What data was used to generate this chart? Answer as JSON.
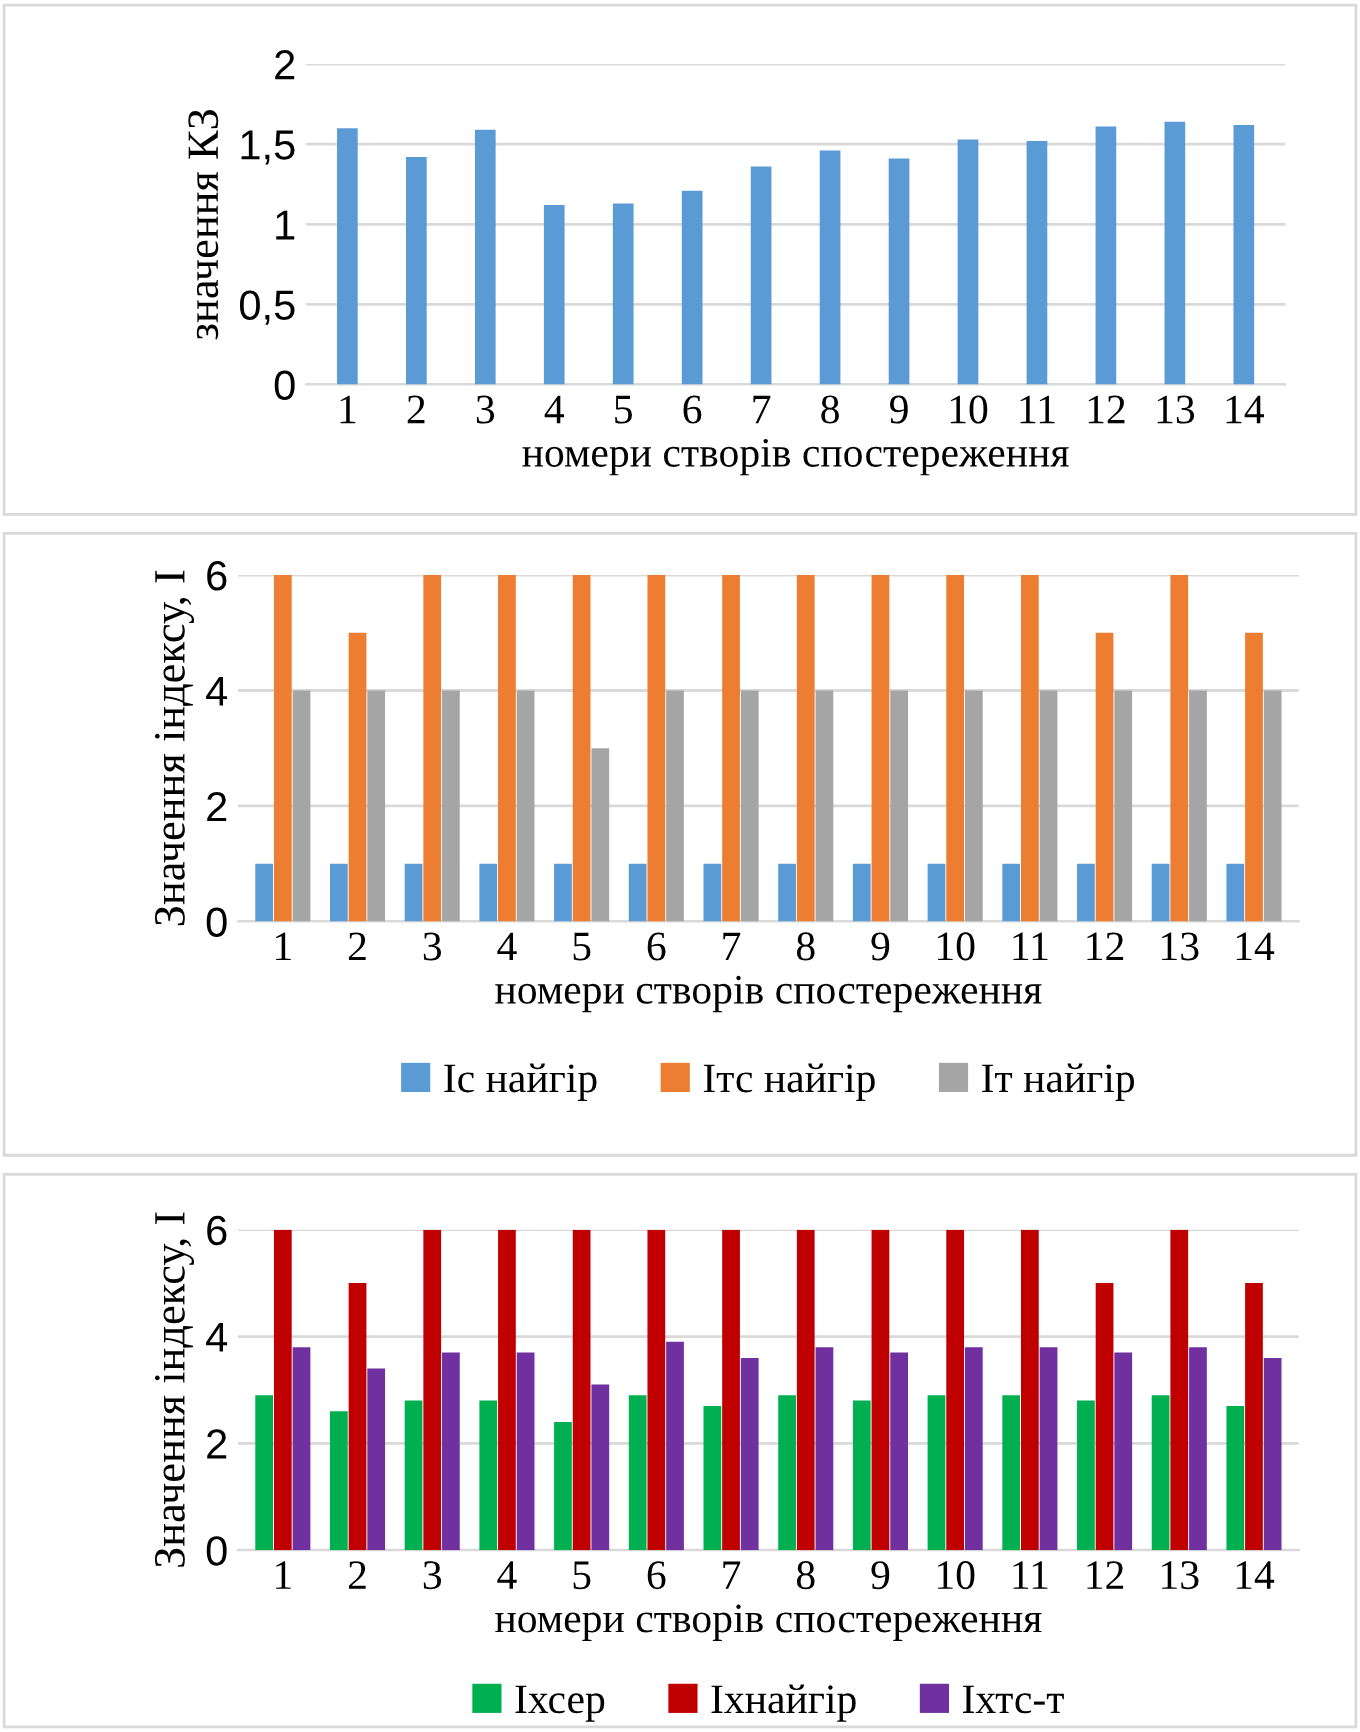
{
  "chart_data": [
    {
      "type": "bar",
      "ylabel": "значення КЗ",
      "xlabel": "номери створів спостереження",
      "categories": [
        "1",
        "2",
        "3",
        "4",
        "5",
        "6",
        "7",
        "8",
        "9",
        "10",
        "11",
        "12",
        "13",
        "14"
      ],
      "series": [
        {
          "color": "#5b9bd5",
          "values": [
            1.6,
            1.42,
            1.59,
            1.12,
            1.13,
            1.21,
            1.36,
            1.46,
            1.41,
            1.53,
            1.52,
            1.61,
            1.64,
            1.62
          ]
        }
      ],
      "ylim": [
        0,
        2
      ],
      "yticks": [
        0,
        {
          "value": 0.5,
          "label": "0,5"
        },
        1,
        {
          "value": 1.5,
          "label": "1,5"
        },
        2
      ],
      "grid": "y",
      "legend": false
    },
    {
      "type": "bar",
      "ylabel": "Значення індексу, І",
      "xlabel": "номери створів спостереження",
      "categories": [
        "1",
        "2",
        "3",
        "4",
        "5",
        "6",
        "7",
        "8",
        "9",
        "10",
        "11",
        "12",
        "13",
        "14"
      ],
      "series": [
        {
          "name": "Іс найгір",
          "color": "#5b9bd5",
          "values": [
            1,
            1,
            1,
            1,
            1,
            1,
            1,
            1,
            1,
            1,
            1,
            1,
            1,
            1
          ]
        },
        {
          "name": "Ітс найгір",
          "color": "#ed7d31",
          "values": [
            6,
            5,
            6,
            6,
            6,
            6,
            6,
            6,
            6,
            6,
            6,
            5,
            6,
            5
          ]
        },
        {
          "name": "Іт найгір",
          "color": "#a5a5a5",
          "values": [
            4,
            4,
            4,
            4,
            3,
            4,
            4,
            4,
            4,
            4,
            4,
            4,
            4,
            4
          ]
        }
      ],
      "ylim": [
        0,
        6
      ],
      "yticks": [
        0,
        2,
        4,
        6
      ],
      "grid": "y",
      "legend": "bottom"
    },
    {
      "type": "bar",
      "ylabel": "Значення індексу, І",
      "xlabel": "номери створів спостереження",
      "categories": [
        "1",
        "2",
        "3",
        "4",
        "5",
        "6",
        "7",
        "8",
        "9",
        "10",
        "11",
        "12",
        "13",
        "14"
      ],
      "series": [
        {
          "name": "Іхсер",
          "color": "#00b050",
          "values": [
            2.9,
            2.6,
            2.8,
            2.8,
            2.4,
            2.9,
            2.7,
            2.9,
            2.8,
            2.9,
            2.9,
            2.8,
            2.9,
            2.7
          ]
        },
        {
          "name": "Іхнайгір",
          "color": "#c00000",
          "values": [
            6,
            5,
            6,
            6,
            6,
            6,
            6,
            6,
            6,
            6,
            6,
            5,
            6,
            5
          ]
        },
        {
          "name": "Іхтс-т",
          "color": "#7030a0",
          "values": [
            3.8,
            3.4,
            3.7,
            3.7,
            3.1,
            3.9,
            3.6,
            3.8,
            3.7,
            3.8,
            3.8,
            3.7,
            3.8,
            3.6
          ]
        }
      ],
      "ylim": [
        0,
        6
      ],
      "yticks": [
        0,
        2,
        4,
        6
      ],
      "grid": "y",
      "legend": "bottom"
    }
  ]
}
